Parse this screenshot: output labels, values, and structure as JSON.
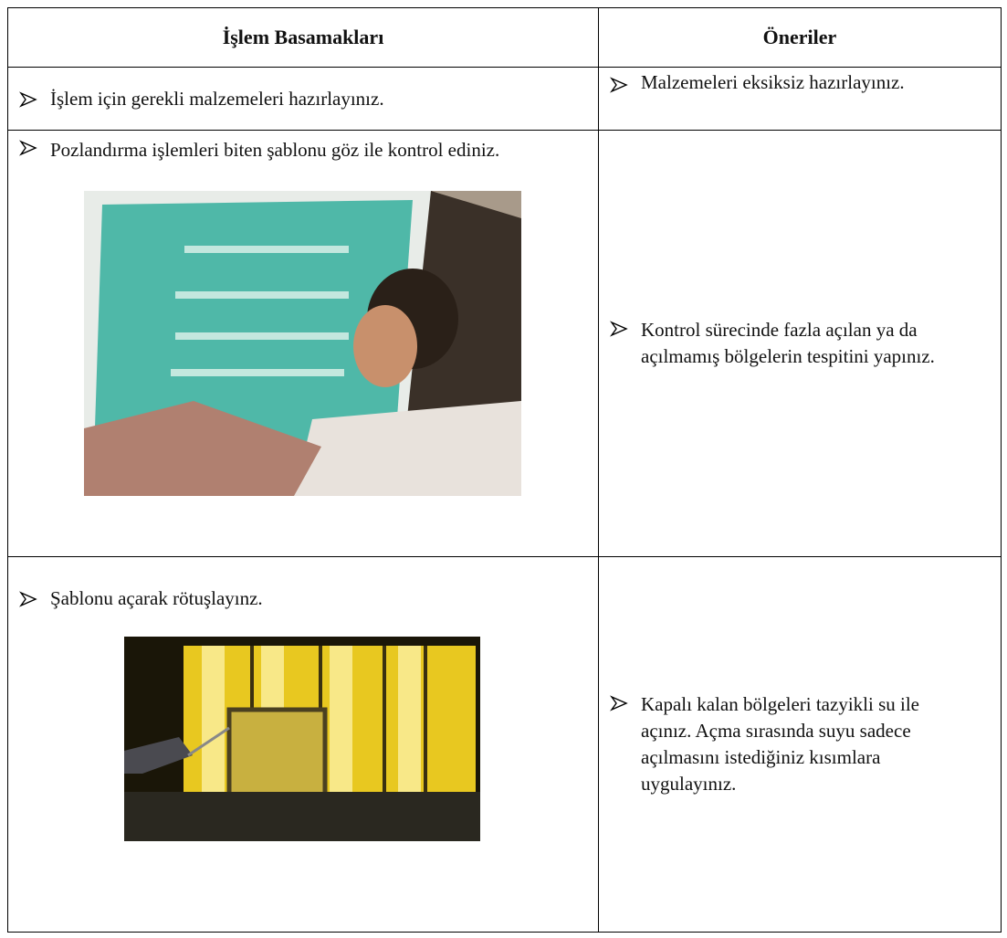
{
  "header": {
    "columns": [
      "İşlem Basamakları",
      "Öneriler"
    ]
  },
  "rows": [
    {
      "step": "İşlem için gerekli malzemeleri hazırlayınız.",
      "advice": "Malzemeleri eksiksiz hazırlayınız."
    },
    {
      "step": "Pozlandırma işlemleri biten şablonu göz ile kontrol ediniz.",
      "advice": "Kontrol sürecinde fazla açılan ya da açılmamış bölgelerin tespitini yapınız."
    },
    {
      "step": "Şablonu açarak rötuşlayınz.",
      "advice": "Kapalı kalan bölgeleri tazyikli su ile açınız. Açma sırasında suyu sadece açılmasını istediğiniz kısımlara uygulayınız."
    }
  ]
}
